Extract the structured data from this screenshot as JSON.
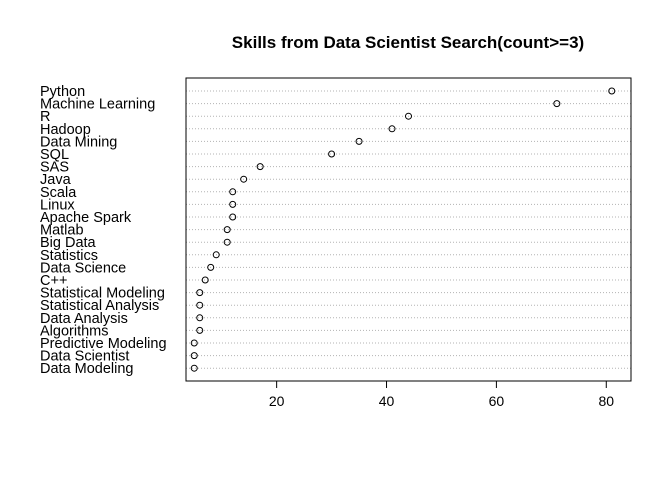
{
  "chart_data": {
    "type": "scatter",
    "title": "Skills from Data Scientist Search(count>=3)",
    "xlabel": "",
    "ylabel": "",
    "xlim": [
      3.5,
      84.5
    ],
    "xticks": [
      20,
      40,
      60,
      80
    ],
    "grid": true,
    "categories": [
      "Python",
      "Machine Learning",
      "R",
      "Hadoop",
      "Data Mining",
      "SQL",
      "SAS",
      "Java",
      "Scala",
      "Linux",
      "Apache Spark",
      "Matlab",
      "Big Data",
      "Statistics",
      "Data Science",
      "C++",
      "Statistical Modeling",
      "Statistical Analysis",
      "Data Analysis",
      "Algorithms",
      "Predictive Modeling",
      "Data Scientist",
      "Data Modeling"
    ],
    "values": [
      81,
      71,
      44,
      41,
      35,
      30,
      17,
      14,
      12,
      12,
      12,
      11,
      11,
      9,
      8,
      7,
      6,
      6,
      6,
      6,
      5,
      5,
      5
    ]
  }
}
